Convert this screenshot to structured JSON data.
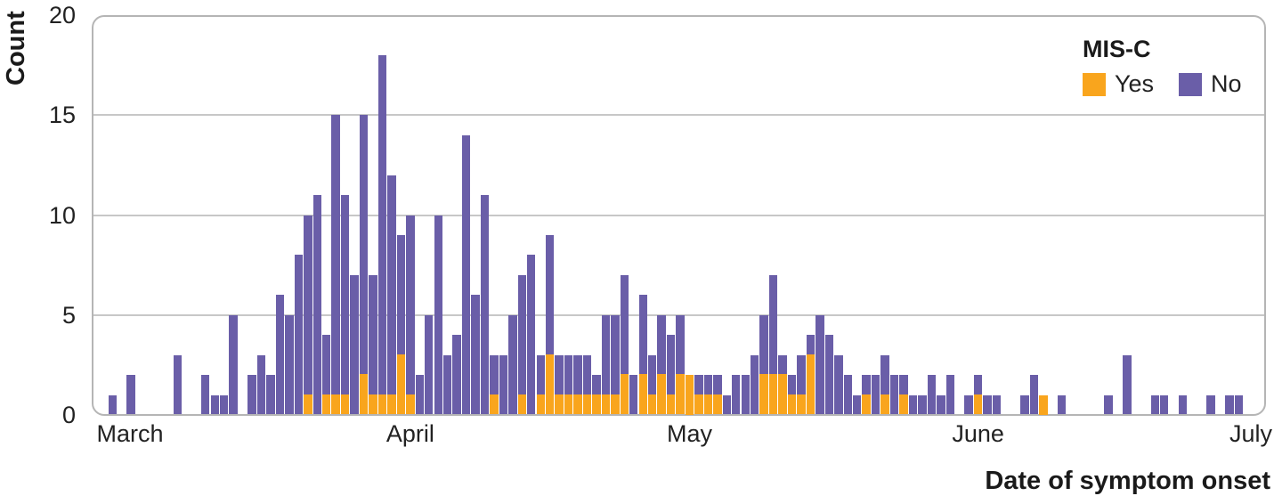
{
  "accent_colors": {
    "yes": "#f9a51d",
    "no": "#6a5ea8",
    "grid": "#c7c7c7",
    "frame": "#b5b5b5",
    "text": "#222222"
  },
  "legend": {
    "title": "MIS-C",
    "items": [
      {
        "label": "Yes",
        "color": "#f9a51d"
      },
      {
        "label": "No",
        "color": "#6a5ea8"
      }
    ]
  },
  "chart_data": {
    "type": "bar",
    "subtype": "stacked-histogram",
    "title": "",
    "xlabel": "Date of symptom onset",
    "ylabel": "Count",
    "ylim": [
      0,
      20
    ],
    "yticks": [
      0,
      5,
      10,
      15,
      20
    ],
    "grid": "horizontal",
    "legend_position": "top-right-inside",
    "x_axis_months": [
      {
        "label": "March",
        "day": 0
      },
      {
        "label": "April",
        "day": 31
      },
      {
        "label": "May",
        "day": 61
      },
      {
        "label": "June",
        "day": 92
      },
      {
        "label": "July",
        "day": 122
      }
    ],
    "series": [
      {
        "name": "Yes",
        "color": "#f9a51d"
      },
      {
        "name": "No",
        "color": "#6a5ea8"
      }
    ],
    "bars": [
      {
        "d": -1,
        "date": "Feb 29",
        "total": 1,
        "yes": 0
      },
      {
        "d": 1,
        "date": "Mar 2",
        "total": 2,
        "yes": 0
      },
      {
        "d": 6,
        "date": "Mar 7",
        "total": 3,
        "yes": 0
      },
      {
        "d": 9,
        "date": "Mar 10",
        "total": 2,
        "yes": 0
      },
      {
        "d": 10,
        "date": "Mar 11",
        "total": 1,
        "yes": 0
      },
      {
        "d": 11,
        "date": "Mar 12",
        "total": 1,
        "yes": 0
      },
      {
        "d": 12,
        "date": "Mar 13",
        "total": 5,
        "yes": 0
      },
      {
        "d": 14,
        "date": "Mar 15",
        "total": 2,
        "yes": 0
      },
      {
        "d": 15,
        "date": "Mar 16",
        "total": 3,
        "yes": 0
      },
      {
        "d": 16,
        "date": "Mar 17",
        "total": 2,
        "yes": 0
      },
      {
        "d": 17,
        "date": "Mar 18",
        "total": 6,
        "yes": 0
      },
      {
        "d": 18,
        "date": "Mar 19",
        "total": 5,
        "yes": 0
      },
      {
        "d": 19,
        "date": "Mar 20",
        "total": 8,
        "yes": 0
      },
      {
        "d": 20,
        "date": "Mar 21",
        "total": 10,
        "yes": 1
      },
      {
        "d": 21,
        "date": "Mar 22",
        "total": 11,
        "yes": 0
      },
      {
        "d": 22,
        "date": "Mar 23",
        "total": 4,
        "yes": 1
      },
      {
        "d": 23,
        "date": "Mar 24",
        "total": 15,
        "yes": 1
      },
      {
        "d": 24,
        "date": "Mar 25",
        "total": 11,
        "yes": 1
      },
      {
        "d": 25,
        "date": "Mar 26",
        "total": 7,
        "yes": 0
      },
      {
        "d": 26,
        "date": "Mar 27",
        "total": 15,
        "yes": 2
      },
      {
        "d": 27,
        "date": "Mar 28",
        "total": 7,
        "yes": 1
      },
      {
        "d": 28,
        "date": "Mar 29",
        "total": 18,
        "yes": 1
      },
      {
        "d": 29,
        "date": "Mar 30",
        "total": 12,
        "yes": 1
      },
      {
        "d": 30,
        "date": "Mar 31",
        "total": 9,
        "yes": 3
      },
      {
        "d": 31,
        "date": "Apr 1",
        "total": 10,
        "yes": 1
      },
      {
        "d": 32,
        "date": "Apr 2",
        "total": 2,
        "yes": 0
      },
      {
        "d": 33,
        "date": "Apr 3",
        "total": 5,
        "yes": 0
      },
      {
        "d": 34,
        "date": "Apr 4",
        "total": 10,
        "yes": 0
      },
      {
        "d": 35,
        "date": "Apr 5",
        "total": 3,
        "yes": 0
      },
      {
        "d": 36,
        "date": "Apr 6",
        "total": 4,
        "yes": 0
      },
      {
        "d": 37,
        "date": "Apr 7",
        "total": 14,
        "yes": 0
      },
      {
        "d": 38,
        "date": "Apr 8",
        "total": 6,
        "yes": 0
      },
      {
        "d": 39,
        "date": "Apr 9",
        "total": 11,
        "yes": 0
      },
      {
        "d": 40,
        "date": "Apr 10",
        "total": 3,
        "yes": 1
      },
      {
        "d": 41,
        "date": "Apr 11",
        "total": 3,
        "yes": 0
      },
      {
        "d": 42,
        "date": "Apr 12",
        "total": 5,
        "yes": 0
      },
      {
        "d": 43,
        "date": "Apr 13",
        "total": 7,
        "yes": 1
      },
      {
        "d": 44,
        "date": "Apr 14",
        "total": 8,
        "yes": 0
      },
      {
        "d": 45,
        "date": "Apr 15",
        "total": 3,
        "yes": 1
      },
      {
        "d": 46,
        "date": "Apr 16",
        "total": 9,
        "yes": 3
      },
      {
        "d": 47,
        "date": "Apr 17",
        "total": 3,
        "yes": 1
      },
      {
        "d": 48,
        "date": "Apr 18",
        "total": 3,
        "yes": 1
      },
      {
        "d": 49,
        "date": "Apr 19",
        "total": 3,
        "yes": 1
      },
      {
        "d": 50,
        "date": "Apr 20",
        "total": 3,
        "yes": 1
      },
      {
        "d": 51,
        "date": "Apr 21",
        "total": 2,
        "yes": 1
      },
      {
        "d": 52,
        "date": "Apr 22",
        "total": 5,
        "yes": 1
      },
      {
        "d": 53,
        "date": "Apr 23",
        "total": 5,
        "yes": 1
      },
      {
        "d": 54,
        "date": "Apr 24",
        "total": 7,
        "yes": 2
      },
      {
        "d": 55,
        "date": "Apr 25",
        "total": 2,
        "yes": 0
      },
      {
        "d": 56,
        "date": "Apr 26",
        "total": 6,
        "yes": 2
      },
      {
        "d": 57,
        "date": "Apr 27",
        "total": 3,
        "yes": 1
      },
      {
        "d": 58,
        "date": "Apr 28",
        "total": 5,
        "yes": 2
      },
      {
        "d": 59,
        "date": "Apr 29",
        "total": 4,
        "yes": 1
      },
      {
        "d": 60,
        "date": "Apr 30",
        "total": 5,
        "yes": 2
      },
      {
        "d": 61,
        "date": "May 1",
        "total": 2,
        "yes": 2
      },
      {
        "d": 62,
        "date": "May 2",
        "total": 2,
        "yes": 1
      },
      {
        "d": 63,
        "date": "May 3",
        "total": 2,
        "yes": 1
      },
      {
        "d": 64,
        "date": "May 4",
        "total": 2,
        "yes": 1
      },
      {
        "d": 65,
        "date": "May 5",
        "total": 1,
        "yes": 0
      },
      {
        "d": 66,
        "date": "May 6",
        "total": 2,
        "yes": 0
      },
      {
        "d": 67,
        "date": "May 7",
        "total": 2,
        "yes": 0
      },
      {
        "d": 68,
        "date": "May 8",
        "total": 3,
        "yes": 0
      },
      {
        "d": 69,
        "date": "May 9",
        "total": 5,
        "yes": 2
      },
      {
        "d": 70,
        "date": "May 10",
        "total": 7,
        "yes": 2
      },
      {
        "d": 71,
        "date": "May 11",
        "total": 3,
        "yes": 2
      },
      {
        "d": 72,
        "date": "May 12",
        "total": 2,
        "yes": 1
      },
      {
        "d": 73,
        "date": "May 13",
        "total": 3,
        "yes": 1
      },
      {
        "d": 74,
        "date": "May 14",
        "total": 4,
        "yes": 3
      },
      {
        "d": 75,
        "date": "May 15",
        "total": 5,
        "yes": 0
      },
      {
        "d": 76,
        "date": "May 16",
        "total": 4,
        "yes": 0
      },
      {
        "d": 77,
        "date": "May 17",
        "total": 3,
        "yes": 0
      },
      {
        "d": 78,
        "date": "May 18",
        "total": 2,
        "yes": 0
      },
      {
        "d": 79,
        "date": "May 19",
        "total": 1,
        "yes": 0
      },
      {
        "d": 80,
        "date": "May 20",
        "total": 2,
        "yes": 1
      },
      {
        "d": 81,
        "date": "May 21",
        "total": 2,
        "yes": 0
      },
      {
        "d": 82,
        "date": "May 22",
        "total": 3,
        "yes": 1
      },
      {
        "d": 83,
        "date": "May 23",
        "total": 2,
        "yes": 0
      },
      {
        "d": 84,
        "date": "May 24",
        "total": 2,
        "yes": 1
      },
      {
        "d": 85,
        "date": "May 25",
        "total": 1,
        "yes": 0
      },
      {
        "d": 86,
        "date": "May 26",
        "total": 1,
        "yes": 0
      },
      {
        "d": 87,
        "date": "May 27",
        "total": 2,
        "yes": 0
      },
      {
        "d": 88,
        "date": "May 28",
        "total": 1,
        "yes": 0
      },
      {
        "d": 89,
        "date": "May 29",
        "total": 2,
        "yes": 0
      },
      {
        "d": 91,
        "date": "May 31",
        "total": 1,
        "yes": 0
      },
      {
        "d": 92,
        "date": "Jun 1",
        "total": 2,
        "yes": 1
      },
      {
        "d": 93,
        "date": "Jun 2",
        "total": 1,
        "yes": 0
      },
      {
        "d": 94,
        "date": "Jun 3",
        "total": 1,
        "yes": 0
      },
      {
        "d": 97,
        "date": "Jun 6",
        "total": 1,
        "yes": 0
      },
      {
        "d": 98,
        "date": "Jun 7",
        "total": 2,
        "yes": 0
      },
      {
        "d": 99,
        "date": "Jun 8",
        "total": 1,
        "yes": 1
      },
      {
        "d": 101,
        "date": "Jun 10",
        "total": 1,
        "yes": 0
      },
      {
        "d": 106,
        "date": "Jun 15",
        "total": 1,
        "yes": 0
      },
      {
        "d": 108,
        "date": "Jun 17",
        "total": 3,
        "yes": 0
      },
      {
        "d": 111,
        "date": "Jun 20",
        "total": 1,
        "yes": 0
      },
      {
        "d": 112,
        "date": "Jun 21",
        "total": 1,
        "yes": 0
      },
      {
        "d": 114,
        "date": "Jun 23",
        "total": 1,
        "yes": 0
      },
      {
        "d": 117,
        "date": "Jun 26",
        "total": 1,
        "yes": 0
      },
      {
        "d": 119,
        "date": "Jun 28",
        "total": 1,
        "yes": 0
      },
      {
        "d": 120,
        "date": "Jun 29",
        "total": 1,
        "yes": 0
      }
    ]
  }
}
